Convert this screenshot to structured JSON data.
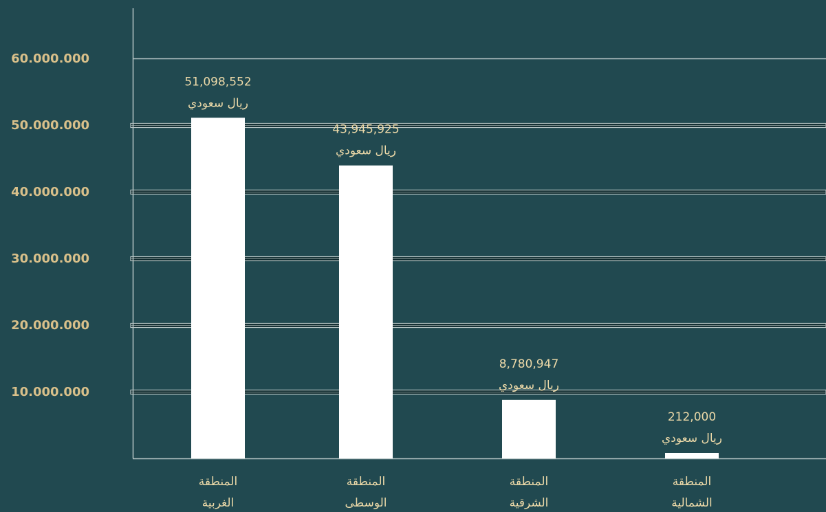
{
  "chart_data": {
    "type": "bar",
    "categories": [
      [
        "المنطقة",
        "الغربية"
      ],
      [
        "المنطقة",
        "الوسطى"
      ],
      [
        "المنطقة",
        "الشرقية"
      ],
      [
        "المنطقة",
        "الشمالية"
      ]
    ],
    "values": [
      51098552,
      43945925,
      8780947,
      212000
    ],
    "value_labels": [
      "51,098,552",
      "43,945,925",
      "8,780,947",
      "212,000"
    ],
    "unit_label": "ريال سعودي",
    "y_ticks": [
      {
        "value": 10000000,
        "label": "10.000.000"
      },
      {
        "value": 20000000,
        "label": "20.000.000"
      },
      {
        "value": 30000000,
        "label": "30.000.000"
      },
      {
        "value": 40000000,
        "label": "40.000.000"
      },
      {
        "value": 50000000,
        "label": "50.000.000"
      },
      {
        "value": 60000000,
        "label": "60.000.000"
      }
    ],
    "ylim": [
      0,
      60000000
    ],
    "grid": true,
    "colors": {
      "background": "#214950",
      "bar": "#ffffff",
      "grid": "#b8c6c6",
      "tick_label": "#d9c08a",
      "value_label": "#ecd9a8"
    }
  }
}
